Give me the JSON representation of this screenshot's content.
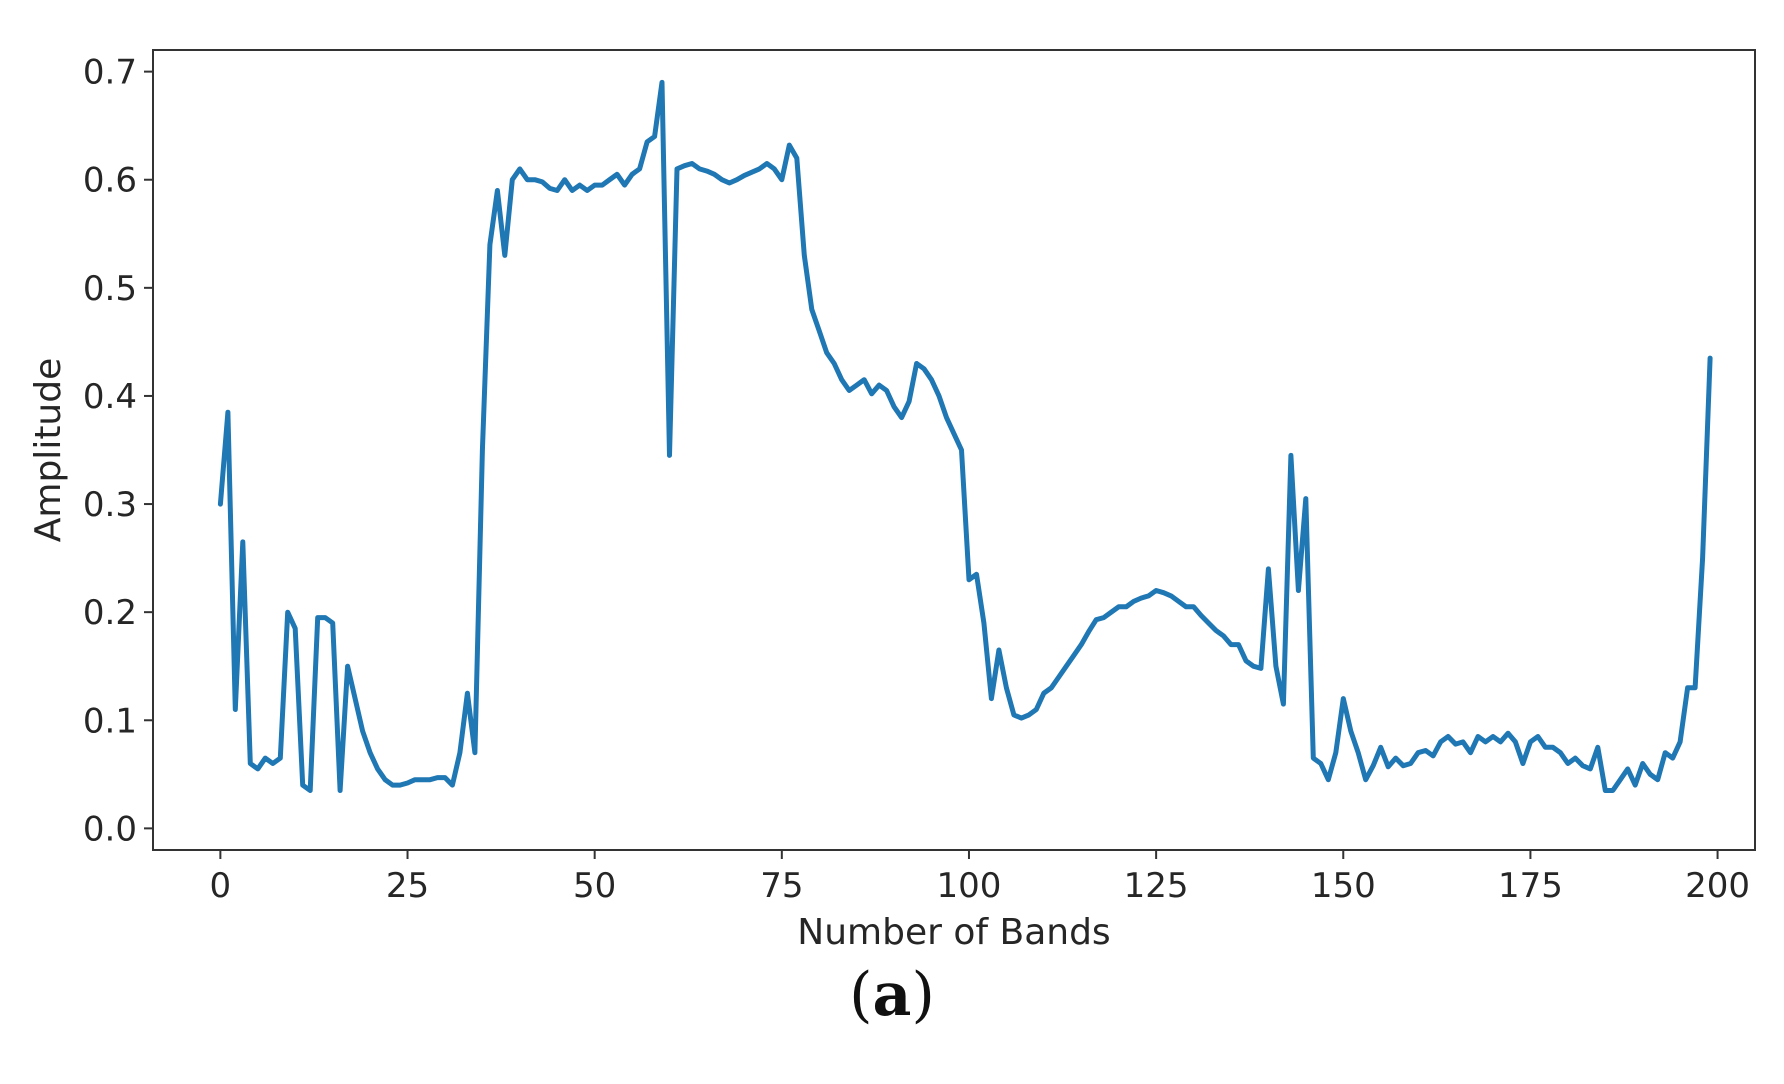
{
  "figure": {
    "caption_open": "(",
    "caption_letter": "a",
    "caption_close": ")"
  },
  "chart_data": {
    "type": "line",
    "xlabel": "Number of Bands",
    "ylabel": "Amplitude",
    "xlim": [
      -9,
      205
    ],
    "ylim": [
      -0.02,
      0.72
    ],
    "xticks": [
      0,
      25,
      50,
      75,
      100,
      125,
      150,
      175,
      200
    ],
    "yticks": [
      0.0,
      0.1,
      0.2,
      0.3,
      0.4,
      0.5,
      0.6,
      0.7
    ],
    "ytick_labels": [
      "0.0",
      "0.1",
      "0.2",
      "0.3",
      "0.4",
      "0.5",
      "0.6",
      "0.7"
    ],
    "grid": false,
    "line_color": "#1f77b4",
    "series": [
      {
        "x": [
          0,
          1,
          2,
          3,
          4,
          5,
          6,
          7,
          8,
          9,
          10,
          11,
          12,
          13,
          14,
          15,
          16,
          17,
          18,
          19,
          20,
          21,
          22,
          23,
          24,
          25,
          26,
          27,
          28,
          29,
          30,
          31,
          32,
          33,
          34,
          35,
          36,
          37,
          38,
          39,
          40,
          41,
          42,
          43,
          44,
          45,
          46,
          47,
          48,
          49,
          50,
          51,
          52,
          53,
          54,
          55,
          56,
          57,
          58,
          59,
          60,
          61,
          62,
          63,
          64,
          65,
          66,
          67,
          68,
          69,
          70,
          71,
          72,
          73,
          74,
          75,
          76,
          77,
          78,
          79,
          80,
          81,
          82,
          83,
          84,
          85,
          86,
          87,
          88,
          89,
          90,
          91,
          92,
          93,
          94,
          95,
          96,
          97,
          98,
          99,
          100,
          101,
          102,
          103,
          104,
          105,
          106,
          107,
          108,
          109,
          110,
          111,
          112,
          113,
          114,
          115,
          116,
          117,
          118,
          119,
          120,
          121,
          122,
          123,
          124,
          125,
          126,
          127,
          128,
          129,
          130,
          131,
          132,
          133,
          134,
          135,
          136,
          137,
          138,
          139,
          140,
          141,
          142,
          143,
          144,
          145,
          146,
          147,
          148,
          149,
          150,
          151,
          152,
          153,
          154,
          155,
          156,
          157,
          158,
          159,
          160,
          161,
          162,
          163,
          164,
          165,
          166,
          167,
          168,
          169,
          170,
          171,
          172,
          173,
          174,
          175,
          176,
          177,
          178,
          179,
          180,
          181,
          182,
          183,
          184,
          185,
          186,
          187,
          188,
          189,
          190,
          191,
          192,
          193,
          194,
          195,
          196,
          197,
          198,
          199
        ],
        "y": [
          0.3,
          0.385,
          0.11,
          0.265,
          0.06,
          0.055,
          0.065,
          0.06,
          0.065,
          0.2,
          0.185,
          0.04,
          0.035,
          0.195,
          0.195,
          0.19,
          0.035,
          0.15,
          0.12,
          0.09,
          0.07,
          0.055,
          0.045,
          0.04,
          0.04,
          0.042,
          0.045,
          0.045,
          0.045,
          0.047,
          0.047,
          0.04,
          0.07,
          0.125,
          0.07,
          0.35,
          0.54,
          0.59,
          0.53,
          0.6,
          0.61,
          0.6,
          0.6,
          0.598,
          0.592,
          0.59,
          0.6,
          0.59,
          0.595,
          0.59,
          0.595,
          0.595,
          0.6,
          0.605,
          0.595,
          0.605,
          0.61,
          0.635,
          0.64,
          0.69,
          0.345,
          0.61,
          0.613,
          0.615,
          0.61,
          0.608,
          0.605,
          0.6,
          0.597,
          0.6,
          0.604,
          0.607,
          0.61,
          0.615,
          0.61,
          0.6,
          0.632,
          0.62,
          0.53,
          0.48,
          0.46,
          0.44,
          0.43,
          0.415,
          0.405,
          0.41,
          0.415,
          0.402,
          0.41,
          0.405,
          0.39,
          0.38,
          0.395,
          0.43,
          0.425,
          0.415,
          0.4,
          0.38,
          0.365,
          0.35,
          0.23,
          0.235,
          0.19,
          0.12,
          0.165,
          0.13,
          0.105,
          0.102,
          0.105,
          0.11,
          0.125,
          0.13,
          0.14,
          0.15,
          0.16,
          0.17,
          0.182,
          0.193,
          0.195,
          0.2,
          0.205,
          0.205,
          0.21,
          0.213,
          0.215,
          0.22,
          0.218,
          0.215,
          0.21,
          0.205,
          0.205,
          0.197,
          0.19,
          0.183,
          0.178,
          0.17,
          0.17,
          0.155,
          0.15,
          0.148,
          0.24,
          0.15,
          0.115,
          0.345,
          0.22,
          0.305,
          0.065,
          0.06,
          0.045,
          0.07,
          0.12,
          0.09,
          0.07,
          0.045,
          0.058,
          0.075,
          0.057,
          0.065,
          0.058,
          0.06,
          0.07,
          0.072,
          0.067,
          0.08,
          0.085,
          0.078,
          0.08,
          0.07,
          0.085,
          0.08,
          0.085,
          0.08,
          0.088,
          0.08,
          0.06,
          0.08,
          0.085,
          0.075,
          0.075,
          0.07,
          0.06,
          0.065,
          0.058,
          0.055,
          0.075,
          0.035,
          0.035,
          0.045,
          0.055,
          0.04,
          0.06,
          0.05,
          0.045,
          0.07,
          0.065,
          0.08,
          0.13,
          0.13,
          0.25,
          0.435
        ]
      }
    ]
  }
}
